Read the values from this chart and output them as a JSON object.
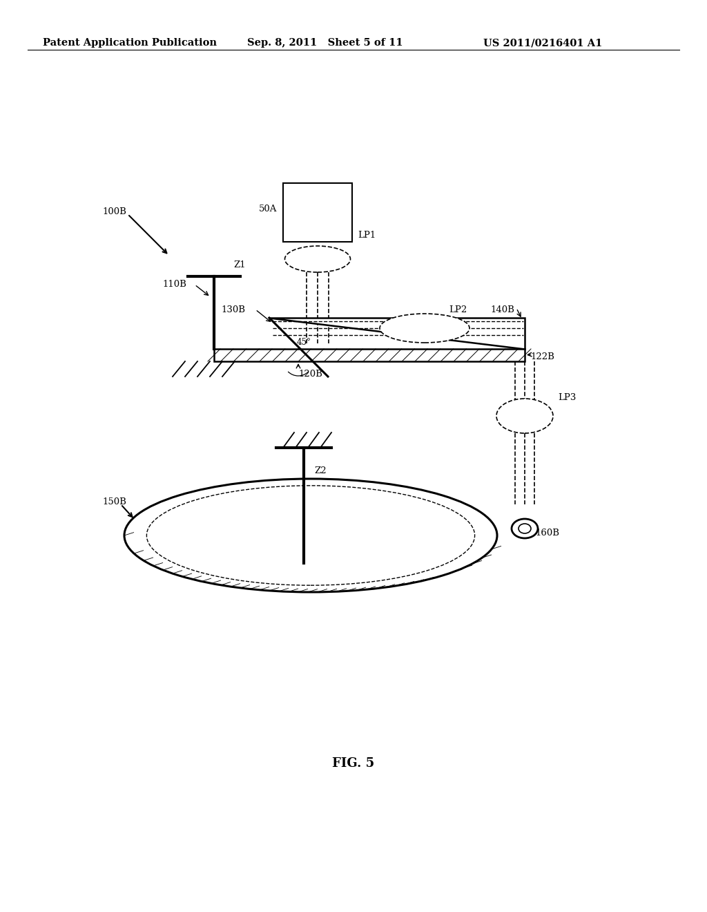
{
  "bg_color": "#ffffff",
  "header_left": "Patent Application Publication",
  "header_mid": "Sep. 8, 2011   Sheet 5 of 11",
  "header_right": "US 2011/0216401 A1",
  "fig_label": "FIG. 5",
  "header_fontsize": 10.5,
  "label_fontsize": 9.5,
  "fig_fontsize": 13
}
